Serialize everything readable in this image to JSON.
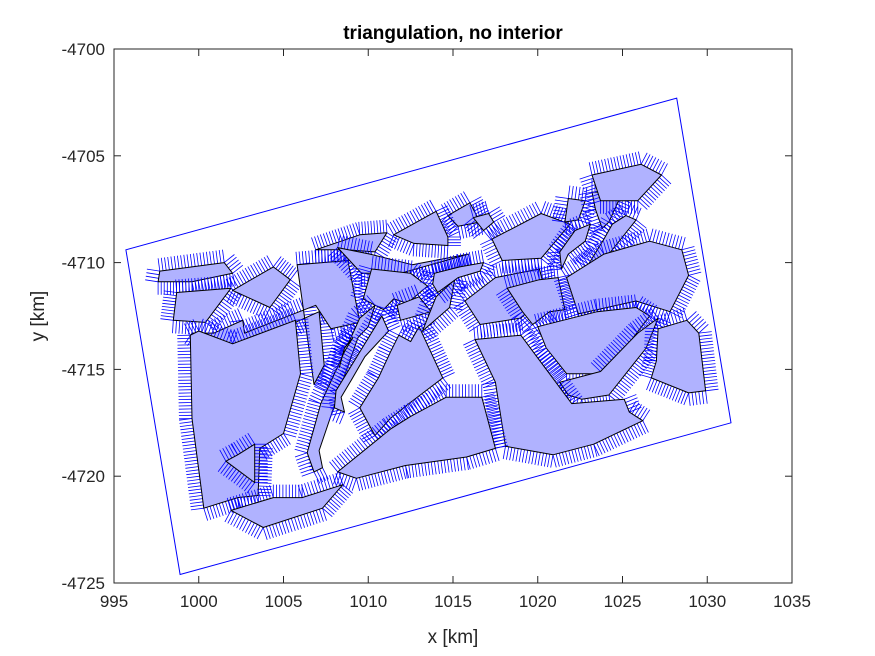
{
  "chart_data": {
    "type": "mesh",
    "title": "triangulation, no interior",
    "xlabel": "x [km]",
    "ylabel": "y [km]",
    "xlim": [
      995,
      1035
    ],
    "ylim": [
      -4725,
      -4700
    ],
    "xticks": [
      995,
      1000,
      1005,
      1010,
      1015,
      1020,
      1025,
      1030,
      1035
    ],
    "yticks": [
      -4725,
      -4720,
      -4715,
      -4710,
      -4705,
      -4700
    ],
    "grid": false,
    "colors": {
      "edge": "#0000ff",
      "fill": "#b0b2ff",
      "outline": "#000000",
      "axis": "#262626"
    },
    "domain_boundary": [
      [
        995.7,
        -4709.4
      ],
      [
        1028.2,
        -4702.3
      ],
      [
        1031.4,
        -4717.5
      ],
      [
        998.9,
        -4724.6
      ]
    ],
    "holes": [
      [
        [
          997.7,
          -4710.4
        ],
        [
          1001.5,
          -4710.0
        ],
        [
          1002.0,
          -4710.5
        ],
        [
          999.6,
          -4710.9
        ],
        [
          997.6,
          -4710.9
        ]
      ],
      [
        [
          998.7,
          -4711.4
        ],
        [
          1001.9,
          -4711.2
        ],
        [
          1000.4,
          -4712.8
        ],
        [
          998.5,
          -4712.7
        ]
      ],
      [
        [
          1002.0,
          -4711.3
        ],
        [
          1004.4,
          -4710.2
        ],
        [
          1005.4,
          -4710.8
        ],
        [
          1004.2,
          -4712.1
        ]
      ],
      [
        [
          1005.8,
          -4710.1
        ],
        [
          1008.8,
          -4709.9
        ],
        [
          1009.5,
          -4712.8
        ],
        [
          1007.8,
          -4713.1
        ],
        [
          1006.9,
          -4712.0
        ],
        [
          1002.7,
          -4713.3
        ],
        [
          1002.6,
          -4712.7
        ],
        [
          1000.9,
          -4713.3
        ],
        [
          999.6,
          -4713.3
        ],
        [
          1001.5,
          -4714.3
        ],
        [
          1007.1,
          -4712.3
        ],
        [
          1007.4,
          -4714.8
        ],
        [
          1006.8,
          -4715.7
        ]
      ],
      [
        [
          999.5,
          -4713.4
        ],
        [
          1000.0,
          -4713.2
        ],
        [
          1002.0,
          -4713.8
        ],
        [
          1005.7,
          -4712.7
        ],
        [
          1006.0,
          -4715.2
        ],
        [
          1005.0,
          -4718.0
        ],
        [
          1003.6,
          -4718.7
        ],
        [
          1003.5,
          -4720.9
        ],
        [
          1002.3,
          -4721.0
        ],
        [
          1000.3,
          -4721.5
        ],
        [
          999.6,
          -4717.3
        ]
      ],
      [
        [
          1006.9,
          -4709.4
        ],
        [
          1009.5,
          -4708.7
        ],
        [
          1011.1,
          -4708.6
        ],
        [
          1010.4,
          -4709.5
        ],
        [
          1008.7,
          -4709.4
        ]
      ],
      [
        [
          1008.2,
          -4709.3
        ],
        [
          1010.1,
          -4709.6
        ],
        [
          1012.6,
          -4710.1
        ],
        [
          1014.6,
          -4709.8
        ],
        [
          1015.9,
          -4709.6
        ],
        [
          1011.9,
          -4710.5
        ],
        [
          1009.6,
          -4710.5
        ]
      ],
      [
        [
          1010.2,
          -4710.3
        ],
        [
          1012.5,
          -4710.5
        ],
        [
          1013.5,
          -4711.1
        ],
        [
          1012.3,
          -4711.9
        ],
        [
          1011.5,
          -4711.7
        ],
        [
          1010.9,
          -4712.2
        ],
        [
          1009.7,
          -4711.7
        ]
      ],
      [
        [
          1011.7,
          -4712.0
        ],
        [
          1013.0,
          -4711.6
        ],
        [
          1013.7,
          -4712.3
        ],
        [
          1011.9,
          -4712.7
        ]
      ],
      [
        [
          1009.5,
          -4712.6
        ],
        [
          1010.4,
          -4712.0
        ],
        [
          1010.0,
          -4713.0
        ],
        [
          1009.4,
          -4713.5
        ],
        [
          1008.6,
          -4715.3
        ],
        [
          1007.1,
          -4718.8
        ],
        [
          1007.3,
          -4719.6
        ],
        [
          1006.8,
          -4719.8
        ],
        [
          1006.4,
          -4718.9
        ],
        [
          1007.2,
          -4716.6
        ]
      ],
      [
        [
          1010.8,
          -4712.5
        ],
        [
          1011.2,
          -4713.2
        ],
        [
          1009.8,
          -4714.4
        ],
        [
          1009.0,
          -4715.5
        ],
        [
          1008.4,
          -4716.3
        ],
        [
          1008.6,
          -4717.0
        ],
        [
          1008.0,
          -4716.8
        ],
        [
          1008.1,
          -4716.0
        ]
      ],
      [
        [
          1011.8,
          -4713.4
        ],
        [
          1012.5,
          -4713.7
        ],
        [
          1013.0,
          -4713.0
        ],
        [
          1014.4,
          -4715.4
        ],
        [
          1012.4,
          -4716.6
        ],
        [
          1011.3,
          -4717.3
        ],
        [
          1010.4,
          -4718.1
        ],
        [
          1009.5,
          -4716.8
        ],
        [
          1010.6,
          -4715.4
        ],
        [
          1011.3,
          -4714.2
        ]
      ],
      [
        [
          1014.8,
          -4712.1
        ],
        [
          1013.2,
          -4713.2
        ],
        [
          1014.0,
          -4711.6
        ],
        [
          1015.1,
          -4710.8
        ]
      ],
      [
        [
          1015.7,
          -4711.8
        ],
        [
          1017.5,
          -4710.7
        ],
        [
          1020.1,
          -4710.3
        ],
        [
          1020.5,
          -4711.5
        ],
        [
          1019.0,
          -4712.6
        ],
        [
          1016.6,
          -4712.9
        ]
      ],
      [
        [
          1017.3,
          -4708.9
        ],
        [
          1020.2,
          -4707.7
        ],
        [
          1021.9,
          -4708.2
        ],
        [
          1020.2,
          -4709.8
        ],
        [
          1017.9,
          -4709.9
        ]
      ],
      [
        [
          1014.7,
          -4707.8
        ],
        [
          1016.0,
          -4707.2
        ],
        [
          1016.6,
          -4708.1
        ],
        [
          1015.3,
          -4708.3
        ]
      ],
      [
        [
          1013.9,
          -4710.5
        ],
        [
          1015.4,
          -4710.2
        ],
        [
          1016.8,
          -4710.0
        ],
        [
          1016.6,
          -4710.4
        ],
        [
          1015.3,
          -4710.7
        ],
        [
          1014.1,
          -4711.4
        ],
        [
          1013.8,
          -4711.0
        ]
      ],
      [
        [
          1011.5,
          -4708.7
        ],
        [
          1014.0,
          -4707.6
        ],
        [
          1014.7,
          -4708.8
        ],
        [
          1014.7,
          -4709.2
        ],
        [
          1012.7,
          -4709.1
        ]
      ],
      [
        [
          1016.2,
          -4707.9
        ],
        [
          1017.1,
          -4707.7
        ],
        [
          1017.4,
          -4708.1
        ],
        [
          1016.8,
          -4708.5
        ]
      ],
      [
        [
          1021.8,
          -4707.0
        ],
        [
          1022.8,
          -4707.1
        ],
        [
          1022.4,
          -4708.0
        ],
        [
          1021.6,
          -4708.1
        ]
      ],
      [
        [
          1023.2,
          -4706.7
        ],
        [
          1025.0,
          -4706.7
        ],
        [
          1024.2,
          -4708.1
        ],
        [
          1023.8,
          -4708.4
        ],
        [
          1023.4,
          -4707.5
        ]
      ],
      [
        [
          1022.2,
          -4708.5
        ],
        [
          1023.1,
          -4708.2
        ],
        [
          1022.8,
          -4709.0
        ],
        [
          1021.8,
          -4709.6
        ],
        [
          1021.4,
          -4710.3
        ],
        [
          1021.3,
          -4709.5
        ]
      ],
      [
        [
          1023.9,
          -4708.9
        ],
        [
          1024.4,
          -4708.2
        ],
        [
          1025.2,
          -4707.8
        ],
        [
          1025.8,
          -4708.0
        ],
        [
          1025.0,
          -4708.8
        ],
        [
          1024.6,
          -4709.2
        ],
        [
          1024.3,
          -4709.5
        ],
        [
          1023.2,
          -4710.2
        ],
        [
          1022.9,
          -4710.2
        ]
      ],
      [
        [
          1023.2,
          -4705.9
        ],
        [
          1026.1,
          -4705.4
        ],
        [
          1027.3,
          -4705.9
        ],
        [
          1025.9,
          -4707.1
        ],
        [
          1023.7,
          -4707.1
        ]
      ],
      [
        [
          1018.2,
          -4711.2
        ],
        [
          1020.1,
          -4710.8
        ],
        [
          1021.2,
          -4710.7
        ],
        [
          1021.6,
          -4712.2
        ],
        [
          1020.7,
          -4712.3
        ],
        [
          1019.7,
          -4712.9
        ],
        [
          1019.1,
          -4712.3
        ]
      ],
      [
        [
          1021.7,
          -4710.7
        ],
        [
          1023.9,
          -4709.6
        ],
        [
          1026.6,
          -4709.0
        ],
        [
          1028.5,
          -4709.4
        ],
        [
          1028.9,
          -4710.6
        ],
        [
          1027.8,
          -4712.3
        ],
        [
          1025.8,
          -4711.8
        ],
        [
          1022.4,
          -4712.4
        ]
      ],
      [
        [
          1020.0,
          -4713.0
        ],
        [
          1023.5,
          -4712.3
        ],
        [
          1025.8,
          -4712.1
        ],
        [
          1026.6,
          -4712.5
        ],
        [
          1024.5,
          -4714.7
        ],
        [
          1023.6,
          -4715.2
        ],
        [
          1021.7,
          -4715.2
        ],
        [
          1020.5,
          -4714.0
        ]
      ],
      [
        [
          1021.3,
          -4715.6
        ],
        [
          1023.7,
          -4715.1
        ],
        [
          1025.9,
          -4713.3
        ],
        [
          1027.1,
          -4712.6
        ],
        [
          1026.4,
          -4714.0
        ],
        [
          1024.2,
          -4716.2
        ],
        [
          1022.6,
          -4716.4
        ],
        [
          1021.8,
          -4716.2
        ]
      ],
      [
        [
          1027.1,
          -4713.1
        ],
        [
          1028.8,
          -4712.7
        ],
        [
          1029.5,
          -4713.3
        ],
        [
          1029.9,
          -4716.0
        ],
        [
          1028.9,
          -4716.1
        ],
        [
          1026.7,
          -4715.4
        ],
        [
          1027.0,
          -4714.6
        ]
      ],
      [
        [
          1016.3,
          -4713.6
        ],
        [
          1019.0,
          -4713.4
        ],
        [
          1022.0,
          -4716.6
        ],
        [
          1025.1,
          -4716.4
        ],
        [
          1025.4,
          -4717.0
        ],
        [
          1026.2,
          -4717.4
        ],
        [
          1023.3,
          -4718.5
        ],
        [
          1020.9,
          -4719.0
        ],
        [
          1018.1,
          -4718.6
        ],
        [
          1017.5,
          -4715.6
        ]
      ],
      [
        [
          1008.2,
          -4719.8
        ],
        [
          1011.3,
          -4717.8
        ],
        [
          1012.5,
          -4717.2
        ],
        [
          1014.6,
          -4716.3
        ],
        [
          1016.7,
          -4716.3
        ],
        [
          1017.5,
          -4718.7
        ],
        [
          1015.8,
          -4719.1
        ],
        [
          1012.2,
          -4719.5
        ],
        [
          1009.3,
          -4720.1
        ]
      ],
      [
        [
          1001.9,
          -4721.6
        ],
        [
          1004.4,
          -4721.0
        ],
        [
          1006.1,
          -4721.0
        ],
        [
          1008.5,
          -4720.4
        ],
        [
          1007.3,
          -4721.5
        ],
        [
          1003.8,
          -4722.4
        ]
      ],
      [
        [
          1001.6,
          -4719.3
        ],
        [
          1002.3,
          -4719.0
        ],
        [
          1003.3,
          -4718.5
        ],
        [
          1003.3,
          -4720.3
        ]
      ],
      [
        [
          1009.1,
          -4713.5
        ],
        [
          1008.5,
          -4714.3
        ],
        [
          1008.3,
          -4714.9
        ],
        [
          1008.6,
          -4714.0
        ]
      ]
    ]
  }
}
